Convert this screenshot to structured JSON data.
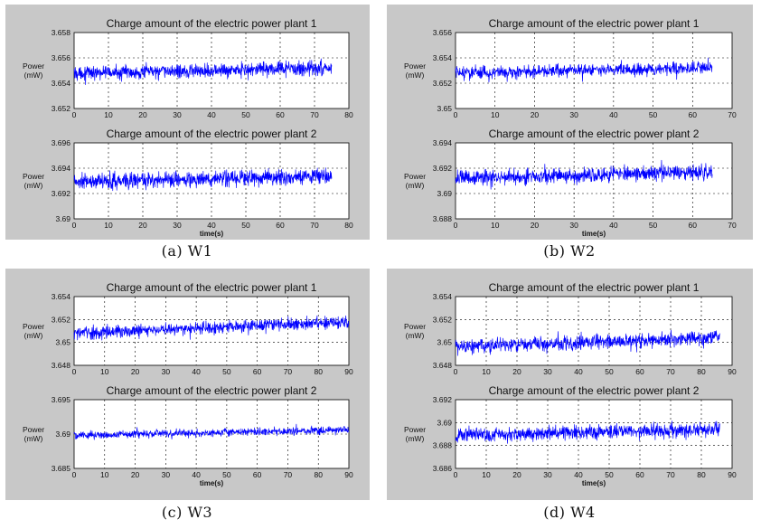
{
  "chart_data": [
    {
      "id": "W1",
      "type": "line",
      "caption": "(a) W1",
      "subplots": [
        {
          "title": "Charge amount of the electric power plant 1",
          "ylabel": [
            "Power",
            "(mW)"
          ],
          "xlabel": "",
          "xlim": [
            0,
            80
          ],
          "ylim": [
            3.652,
            3.658
          ],
          "xticks": [
            "0",
            "10",
            "20",
            "30",
            "40",
            "50",
            "60",
            "70",
            "80"
          ],
          "yticks": [
            "3.652",
            "3.654",
            "3.656",
            "3.658"
          ],
          "series": [
            {
              "color": "#0000ff",
              "x_end": 75,
              "y_start": 3.6548,
              "y_end": 3.6552,
              "band": 0.0008
            }
          ]
        },
        {
          "title": "Charge amount of the electric power plant 2",
          "ylabel": [
            "Power",
            "(mW)"
          ],
          "xlabel": "time(s)",
          "xlim": [
            0,
            80
          ],
          "ylim": [
            3.69,
            3.696
          ],
          "xticks": [
            "0",
            "10",
            "20",
            "30",
            "40",
            "50",
            "60",
            "70",
            "80"
          ],
          "yticks": [
            "3.69",
            "3.692",
            "3.694",
            "3.696"
          ],
          "series": [
            {
              "color": "#0000ff",
              "x_end": 75,
              "y_start": 3.6929,
              "y_end": 3.6934,
              "band": 0.0009
            }
          ]
        }
      ]
    },
    {
      "id": "W2",
      "type": "line",
      "caption": "(b) W2",
      "subplots": [
        {
          "title": "Charge amount of the electric power plant 1",
          "ylabel": [
            "Power",
            "(mW)"
          ],
          "xlabel": "",
          "xlim": [
            0,
            70
          ],
          "ylim": [
            3.65,
            3.656
          ],
          "xticks": [
            "0",
            "10",
            "20",
            "30",
            "40",
            "50",
            "60",
            "70"
          ],
          "yticks": [
            "3.65",
            "3.652",
            "3.654",
            "3.656"
          ],
          "series": [
            {
              "color": "#0000ff",
              "x_end": 65,
              "y_start": 3.6528,
              "y_end": 3.6532,
              "band": 0.0007
            }
          ]
        },
        {
          "title": "Charge amount of the electric power plant 2",
          "ylabel": [
            "Power",
            "(mW)"
          ],
          "xlabel": "time(s)",
          "xlim": [
            0,
            70
          ],
          "ylim": [
            3.688,
            3.694
          ],
          "xticks": [
            "0",
            "10",
            "20",
            "30",
            "40",
            "50",
            "60",
            "70"
          ],
          "yticks": [
            "3.688",
            "3.69",
            "3.692",
            "3.694"
          ],
          "series": [
            {
              "color": "#0000ff",
              "x_end": 65,
              "y_start": 3.6912,
              "y_end": 3.6917,
              "band": 0.0008
            }
          ]
        }
      ]
    },
    {
      "id": "W3",
      "type": "line",
      "caption": "(c) W3",
      "subplots": [
        {
          "title": "Charge amount of the electric power plant 1",
          "ylabel": [
            "Power",
            "(mW)"
          ],
          "xlabel": "",
          "xlim": [
            0,
            90
          ],
          "ylim": [
            3.648,
            3.654
          ],
          "xticks": [
            "0",
            "10",
            "20",
            "30",
            "40",
            "50",
            "60",
            "70",
            "80",
            "90"
          ],
          "yticks": [
            "3.648",
            "3.65",
            "3.652",
            "3.654"
          ],
          "series": [
            {
              "color": "#0000ff",
              "x_end": 90,
              "y_start": 3.6508,
              "y_end": 3.6518,
              "band": 0.0008
            }
          ]
        },
        {
          "title": "Charge amount of the electric power plant 2",
          "ylabel": [
            "Power",
            "(mW)"
          ],
          "xlabel": "time(s)",
          "xlim": [
            0,
            90
          ],
          "ylim": [
            3.685,
            3.695
          ],
          "xticks": [
            "0",
            "10",
            "20",
            "30",
            "40",
            "50",
            "60",
            "70",
            "80",
            "90"
          ],
          "yticks": [
            "3.685",
            "3.69",
            "3.695"
          ],
          "series": [
            {
              "color": "#0000ff",
              "x_end": 90,
              "y_start": 3.6898,
              "y_end": 3.6906,
              "band": 0.0008
            }
          ]
        }
      ]
    },
    {
      "id": "W4",
      "type": "line",
      "caption": "(d) W4",
      "subplots": [
        {
          "title": "Charge amount of the electric power plant 1",
          "ylabel": [
            "Power",
            "(mW)"
          ],
          "xlabel": "",
          "xlim": [
            0,
            90
          ],
          "ylim": [
            3.648,
            3.654
          ],
          "xticks": [
            "0",
            "10",
            "20",
            "30",
            "40",
            "50",
            "60",
            "70",
            "80",
            "90"
          ],
          "yticks": [
            "3.648",
            "3.65",
            "3.652",
            "3.654"
          ],
          "series": [
            {
              "color": "#0000ff",
              "x_end": 86,
              "y_start": 3.6496,
              "y_end": 3.6504,
              "band": 0.0009
            }
          ]
        },
        {
          "title": "Charge amount of the electric power plant 2",
          "ylabel": [
            "Power",
            "(mW)"
          ],
          "xlabel": "time(s)",
          "xlim": [
            0,
            90
          ],
          "ylim": [
            3.686,
            3.692
          ],
          "xticks": [
            "0",
            "10",
            "20",
            "30",
            "40",
            "50",
            "60",
            "70",
            "80",
            "90"
          ],
          "yticks": [
            "3.686",
            "3.688",
            "3.69",
            "3.692"
          ],
          "series": [
            {
              "color": "#0000ff",
              "x_end": 86,
              "y_start": 3.6889,
              "y_end": 3.6894,
              "band": 0.0009
            }
          ]
        }
      ]
    }
  ]
}
